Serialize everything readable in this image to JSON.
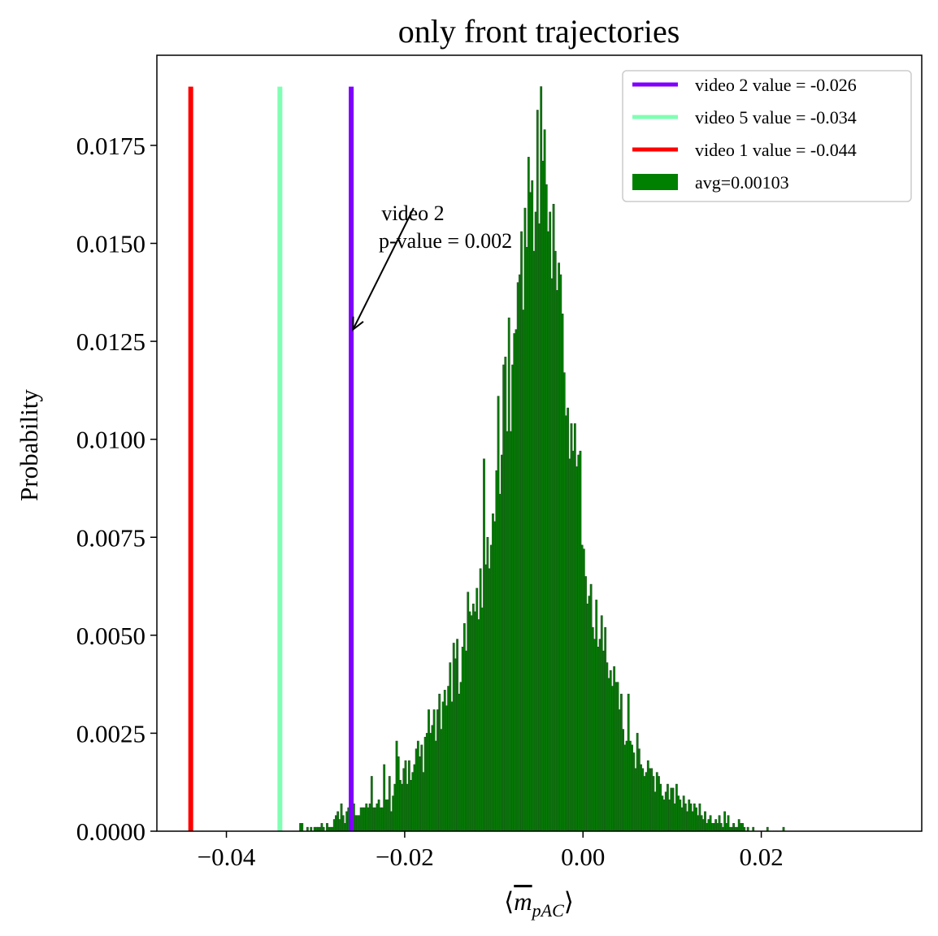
{
  "chart_data": {
    "type": "bar",
    "title": "only front trajectories",
    "xlabel_parts": {
      "left": "⟨",
      "symbol": "m",
      "subscript": "pAC",
      "right": "⟩"
    },
    "ylabel": "Probability",
    "xlim": [
      -0.0478,
      0.038
    ],
    "ylim": [
      0,
      0.0198
    ],
    "xticks": [
      -0.04,
      -0.02,
      0.0,
      0.02
    ],
    "xtick_labels": [
      "−0.04",
      "−0.02",
      "0.00",
      "0.02"
    ],
    "yticks": [
      0.0,
      0.0025,
      0.005,
      0.0075,
      0.01,
      0.0125,
      0.015,
      0.0175
    ],
    "ytick_labels": [
      "0.0000",
      "0.0025",
      "0.0050",
      "0.0075",
      "0.0100",
      "0.0125",
      "0.0150",
      "0.0175"
    ],
    "histogram": {
      "name": "avg=0.00103",
      "color": "#008000",
      "edge_color": "#1f4f1f",
      "bin_start": -0.0318,
      "bin_width": 0.0002,
      "values": [
        0.0002,
        0.0002,
        0.0,
        0.0,
        0.0001,
        0.0,
        0.0001,
        0.0,
        0.0001,
        0.0001,
        0.0001,
        0.0001,
        0.0002,
        0.0001,
        0.0,
        0.0002,
        0.0001,
        0.0001,
        0.0001,
        0.0003,
        0.0004,
        0.0005,
        0.0003,
        0.0007,
        0.0004,
        0.0002,
        0.0005,
        0.0006,
        0.0006,
        0.0003,
        0.0007,
        0.0004,
        0.0004,
        0.0004,
        0.0006,
        0.0006,
        0.0006,
        0.0007,
        0.0006,
        0.0007,
        0.0014,
        0.0006,
        0.0006,
        0.0007,
        0.0008,
        0.0006,
        0.0006,
        0.0017,
        0.0008,
        0.0008,
        0.0014,
        0.0005,
        0.0009,
        0.0012,
        0.0023,
        0.0019,
        0.0013,
        0.0012,
        0.0016,
        0.0018,
        0.0012,
        0.0018,
        0.0013,
        0.0015,
        0.0017,
        0.0021,
        0.0023,
        0.0019,
        0.0022,
        0.0015,
        0.0024,
        0.0025,
        0.0031,
        0.0025,
        0.0027,
        0.0031,
        0.0023,
        0.0031,
        0.0035,
        0.0026,
        0.0033,
        0.0036,
        0.0032,
        0.0037,
        0.0043,
        0.0033,
        0.0048,
        0.0044,
        0.0049,
        0.0035,
        0.0038,
        0.0047,
        0.0053,
        0.0046,
        0.0061,
        0.0056,
        0.0055,
        0.0058,
        0.0056,
        0.0062,
        0.0054,
        0.0067,
        0.0057,
        0.0095,
        0.0068,
        0.0075,
        0.0067,
        0.0073,
        0.0081,
        0.0079,
        0.0092,
        0.0111,
        0.0086,
        0.0096,
        0.0119,
        0.0121,
        0.0102,
        0.0131,
        0.0102,
        0.0119,
        0.0127,
        0.0128,
        0.014,
        0.0142,
        0.0153,
        0.0133,
        0.0159,
        0.0149,
        0.0172,
        0.0163,
        0.0166,
        0.0148,
        0.0158,
        0.0184,
        0.0155,
        0.019,
        0.0171,
        0.0179,
        0.0165,
        0.0153,
        0.0158,
        0.0141,
        0.016,
        0.0148,
        0.0138,
        0.0145,
        0.0142,
        0.0132,
        0.0117,
        0.0106,
        0.0108,
        0.0095,
        0.0104,
        0.0097,
        0.0104,
        0.0093,
        0.0096,
        0.0097,
        0.0073,
        0.0072,
        0.0065,
        0.0058,
        0.006,
        0.0063,
        0.0052,
        0.0049,
        0.0059,
        0.0047,
        0.0049,
        0.0055,
        0.0046,
        0.0052,
        0.0043,
        0.0039,
        0.0041,
        0.0037,
        0.0042,
        0.0038,
        0.0038,
        0.0031,
        0.0035,
        0.0026,
        0.0022,
        0.0023,
        0.0035,
        0.0023,
        0.0022,
        0.002,
        0.0016,
        0.0025,
        0.0021,
        0.0017,
        0.0016,
        0.0014,
        0.0015,
        0.0018,
        0.0016,
        0.0016,
        0.0014,
        0.001,
        0.0015,
        0.0014,
        0.0012,
        0.0009,
        0.0008,
        0.001,
        0.0012,
        0.0008,
        0.0011,
        0.0011,
        0.0007,
        0.0012,
        0.0009,
        0.0008,
        0.0006,
        0.0009,
        0.0007,
        0.0005,
        0.0008,
        0.0007,
        0.0005,
        0.0007,
        0.0006,
        0.0004,
        0.0007,
        0.0004,
        0.0003,
        0.0005,
        0.0002,
        0.0003,
        0.0004,
        0.0002,
        0.0002,
        0.0003,
        0.0002,
        0.0004,
        0.0002,
        0.0001,
        0.0005,
        0.0002,
        0.0004,
        0.0001,
        0.0001,
        0.0002,
        0.0001,
        0.0001,
        0.0003,
        0.0002,
        0.0002,
        0.0001,
        0.0,
        0.0001,
        0.0,
        0.0,
        0.0001,
        0.0,
        0.0,
        0.0,
        0.0,
        0.0,
        0.0,
        0.0,
        0.0001,
        0.0,
        0.0,
        0.0,
        0.0,
        0.0,
        0.0,
        0.0,
        0.0,
        0.0001
      ]
    },
    "vlines": [
      {
        "name": "video 2 value = -0.026",
        "x": -0.026,
        "color": "#7f00ff"
      },
      {
        "name": "video 5 value = -0.034",
        "x": -0.034,
        "color": "#80ffb4"
      },
      {
        "name": "video 1 value = -0.044",
        "x": -0.044,
        "color": "#ff0000"
      }
    ],
    "vline_top": 0.019,
    "legend": {
      "placement": "top-right",
      "entries": [
        {
          "label": "video 2 value = -0.026",
          "kind": "line",
          "color": "#7f00ff"
        },
        {
          "label": "video 5 value = -0.034",
          "kind": "line",
          "color": "#80ffb4"
        },
        {
          "label": "video 1 value = -0.044",
          "kind": "line",
          "color": "#ff0000"
        },
        {
          "label": "avg=0.00103",
          "kind": "patch",
          "color": "#008000"
        }
      ]
    },
    "annotation": {
      "lines": [
        "video 2",
        "p-value = 0.002"
      ],
      "arrow_target": {
        "x": -0.0258,
        "y": 0.0128
      },
      "text_anchor": {
        "x": -0.019,
        "y": 0.0159
      }
    }
  }
}
